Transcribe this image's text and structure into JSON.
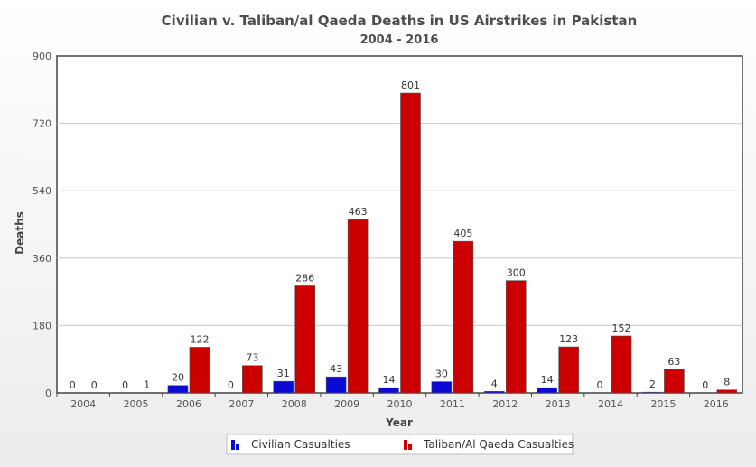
{
  "chart_data": {
    "type": "bar",
    "title": "Civilian v. Taliban/al Qaeda Deaths in US Airstrikes in Pakistan",
    "subtitle": "2004 - 2016",
    "xlabel": "Year",
    "ylabel": "Deaths",
    "ylim": [
      0,
      900
    ],
    "yticks": [
      0,
      180,
      360,
      540,
      720,
      900
    ],
    "grid": true,
    "legend_position": "bottom-center",
    "categories": [
      "2004",
      "2005",
      "2006",
      "2007",
      "2008",
      "2009",
      "2010",
      "2011",
      "2012",
      "2013",
      "2014",
      "2015",
      "2016"
    ],
    "series": [
      {
        "name": "Civilian Casualties",
        "color": "#0a0ad2",
        "values": [
          0,
          0,
          20,
          0,
          31,
          43,
          14,
          30,
          4,
          14,
          0,
          2,
          0
        ]
      },
      {
        "name": "Taliban/Al Qaeda Casualties",
        "color": "#cc0000",
        "values": [
          0,
          1,
          122,
          73,
          286,
          463,
          801,
          405,
          300,
          123,
          152,
          63,
          8
        ]
      }
    ]
  }
}
